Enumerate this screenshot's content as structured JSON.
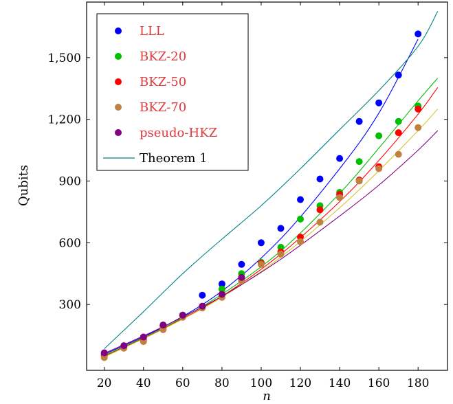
{
  "chart_data": {
    "type": "scatter",
    "xlabel": "n",
    "ylabel": "Qubits",
    "xlim": [
      11,
      195
    ],
    "ylim": [
      -20,
      1770
    ],
    "xticks": [
      20,
      40,
      60,
      80,
      100,
      120,
      140,
      160,
      180
    ],
    "xtick_labels": [
      "20",
      "40",
      "60",
      "80",
      "100",
      "120",
      "140",
      "160",
      "180"
    ],
    "yticks": [
      300,
      600,
      900,
      1200,
      1500
    ],
    "ytick_labels": [
      "300",
      "600",
      "900",
      "1,200",
      "1,500"
    ],
    "grid": false,
    "legend_position": "top-left",
    "series": [
      {
        "name": "LLL",
        "color": "#0000ff",
        "label_color": "#e0393e",
        "kind": "points",
        "x": [
          20,
          30,
          40,
          50,
          60,
          70,
          80,
          90,
          100,
          110,
          120,
          130,
          140,
          150,
          160,
          170,
          180
        ],
        "y": [
          60,
          97,
          140,
          200,
          248,
          345,
          400,
          495,
          600,
          670,
          810,
          910,
          1010,
          1190,
          1280,
          1415,
          1615
        ]
      },
      {
        "name": "BKZ-20",
        "color": "#00bf00",
        "label_color": "#e0393e",
        "kind": "points",
        "x": [
          20,
          30,
          40,
          50,
          60,
          70,
          80,
          90,
          100,
          110,
          120,
          130,
          140,
          150,
          160,
          170,
          180
        ],
        "y": [
          55,
          95,
          135,
          195,
          248,
          290,
          375,
          450,
          505,
          578,
          715,
          780,
          845,
          995,
          1120,
          1190,
          1265
        ]
      },
      {
        "name": "BKZ-50",
        "color": "#ff0000",
        "label_color": "#e0393e",
        "kind": "points",
        "x": [
          20,
          30,
          40,
          50,
          60,
          70,
          80,
          90,
          100,
          110,
          120,
          130,
          140,
          150,
          160,
          170,
          180
        ],
        "y": [
          50,
          92,
          128,
          185,
          245,
          288,
          345,
          425,
          500,
          555,
          628,
          760,
          835,
          905,
          970,
          1135,
          1250
        ]
      },
      {
        "name": "BKZ-70",
        "color": "#bf8040",
        "label_color": "#e0393e",
        "kind": "points",
        "x": [
          20,
          30,
          40,
          50,
          60,
          70,
          80,
          90,
          100,
          110,
          120,
          130,
          140,
          150,
          160,
          170,
          180
        ],
        "y": [
          42,
          88,
          120,
          178,
          238,
          283,
          335,
          415,
          495,
          545,
          605,
          700,
          820,
          900,
          960,
          1030,
          1160
        ]
      },
      {
        "name": "pseudo-HKZ",
        "color": "#800080",
        "label_color": "#e0393e",
        "kind": "points",
        "x": [
          20,
          30,
          40,
          50,
          60,
          70,
          80,
          90
        ],
        "y": [
          65,
          100,
          142,
          200,
          248,
          292,
          350,
          432
        ]
      },
      {
        "name": "Theorem 1",
        "color": "#008080",
        "label_color": "#000000",
        "kind": "line",
        "x": [
          20,
          40,
          60,
          80,
          100,
          120,
          140,
          160,
          180,
          190
        ],
        "y": [
          85,
          265,
          450,
          618,
          780,
          960,
          1150,
          1340,
          1555,
          1725
        ]
      }
    ],
    "fit_curves": [
      {
        "color": "#0000ff",
        "x": [
          20,
          50,
          80,
          110,
          140,
          160,
          180
        ],
        "y": [
          58,
          190,
          365,
          620,
          960,
          1230,
          1590
        ]
      },
      {
        "color": "#00bf00",
        "x": [
          20,
          50,
          80,
          110,
          140,
          160,
          180,
          190
        ],
        "y": [
          52,
          185,
          350,
          560,
          840,
          1060,
          1290,
          1400
        ]
      },
      {
        "color": "#ff0000",
        "x": [
          20,
          50,
          80,
          110,
          140,
          160,
          180,
          190
        ],
        "y": [
          48,
          182,
          340,
          545,
          800,
          1000,
          1225,
          1355
        ]
      },
      {
        "color": "#d4c430",
        "x": [
          20,
          50,
          80,
          110,
          140,
          160,
          180,
          190
        ],
        "y": [
          45,
          180,
          335,
          530,
          770,
          950,
          1145,
          1250
        ]
      },
      {
        "color": "#800080",
        "x": [
          20,
          50,
          80,
          110,
          140,
          160,
          180,
          190
        ],
        "y": [
          62,
          192,
          340,
          520,
          730,
          880,
          1050,
          1145
        ]
      }
    ]
  }
}
